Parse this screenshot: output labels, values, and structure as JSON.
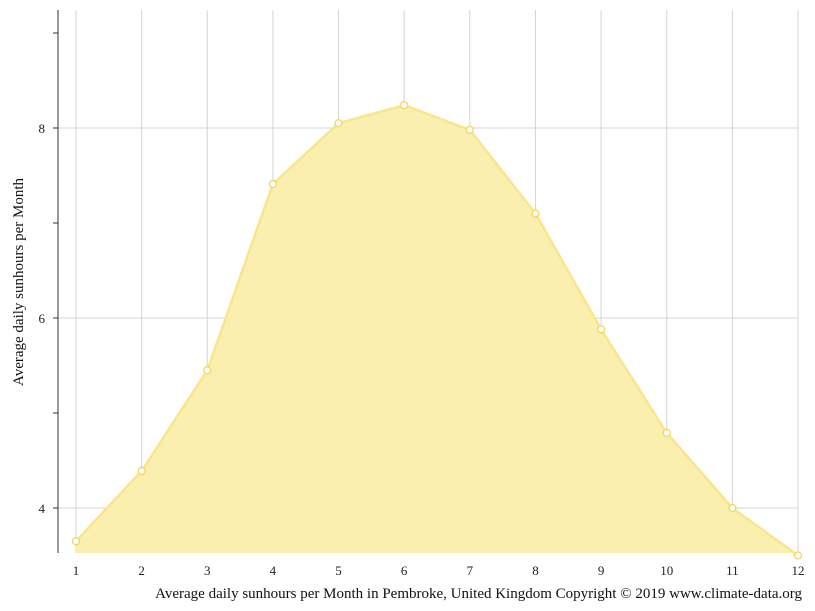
{
  "chart_data": {
    "type": "area",
    "title": "",
    "ylabel": "Average daily sunhours per Month",
    "xlabel": "",
    "caption": "Average daily sunhours per Month in Pembroke, United Kingdom Copyright © 2019 www.climate-data.org",
    "x": [
      1,
      2,
      3,
      4,
      5,
      6,
      7,
      8,
      9,
      10,
      11,
      12
    ],
    "x_tick_labels": [
      "1",
      "2",
      "3",
      "4",
      "5",
      "6",
      "7",
      "8",
      "9",
      "10",
      "11",
      "12"
    ],
    "y_tick_values": [
      4,
      6,
      8
    ],
    "y_tick_labels": [
      "4",
      "6",
      "8"
    ],
    "series": [
      {
        "values": [
          3.65,
          4.39,
          5.45,
          7.41,
          8.05,
          8.24,
          7.98,
          7.1,
          5.88,
          4.79,
          4.0,
          3.5
        ]
      }
    ],
    "xlim": [
      1,
      12
    ],
    "ylim": [
      3.5,
      9.2
    ],
    "grid": true,
    "colors": {
      "fill": "#fbeeac",
      "line": "#f8e58c",
      "marker_stroke": "#f2d65a",
      "marker_fill": "#ffffff",
      "grid": "#d4d4d4",
      "axis": "#333333"
    }
  }
}
